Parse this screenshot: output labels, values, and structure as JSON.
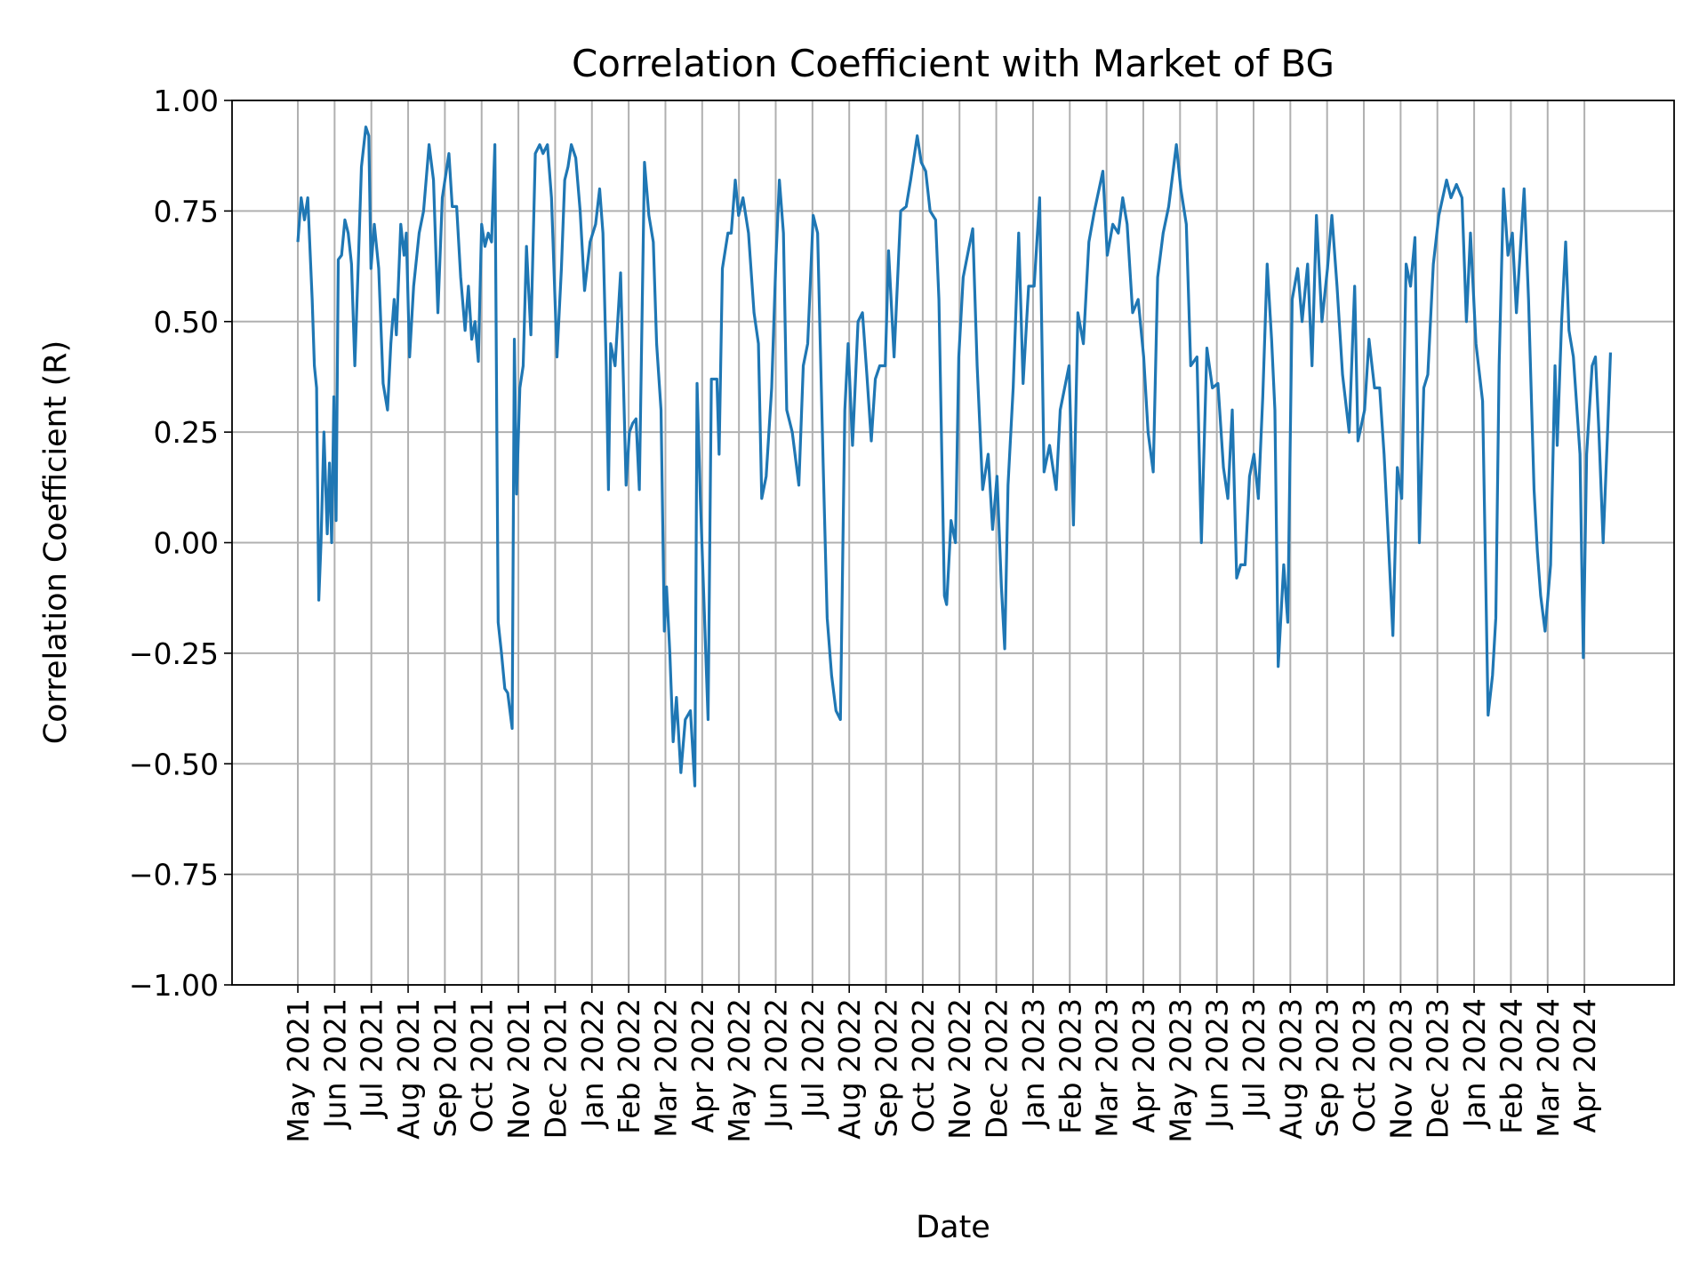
{
  "chart_data": {
    "type": "line",
    "title": "Correlation Coefficient with Market of BG",
    "xlabel": "Date",
    "ylabel": "Correlation Coefficient (R)",
    "color": "#1f77b4",
    "grid": true,
    "xlim": [
      -1.79,
      37.44
    ],
    "ylim": [
      -1,
      1
    ],
    "yticks": [
      {
        "value": -1,
        "label": "−1.00"
      },
      {
        "value": -0.75,
        "label": "−0.75"
      },
      {
        "value": -0.5,
        "label": "−0.50"
      },
      {
        "value": -0.25,
        "label": "−0.25"
      },
      {
        "value": 0,
        "label": "0.00"
      },
      {
        "value": 0.25,
        "label": "0.25"
      },
      {
        "value": 0.5,
        "label": "0.50"
      },
      {
        "value": 0.75,
        "label": "0.75"
      },
      {
        "value": 1,
        "label": "1.00"
      }
    ],
    "xticks": [
      {
        "value": 0,
        "label": "May 2021"
      },
      {
        "value": 1,
        "label": "Jun 2021"
      },
      {
        "value": 2,
        "label": "Jul 2021"
      },
      {
        "value": 3,
        "label": "Aug 2021"
      },
      {
        "value": 4,
        "label": "Sep 2021"
      },
      {
        "value": 5,
        "label": "Oct 2021"
      },
      {
        "value": 6,
        "label": "Nov 2021"
      },
      {
        "value": 7,
        "label": "Dec 2021"
      },
      {
        "value": 8,
        "label": "Jan 2022"
      },
      {
        "value": 9,
        "label": "Feb 2022"
      },
      {
        "value": 10,
        "label": "Mar 2022"
      },
      {
        "value": 11,
        "label": "Apr 2022"
      },
      {
        "value": 12,
        "label": "May 2022"
      },
      {
        "value": 13,
        "label": "Jun 2022"
      },
      {
        "value": 14,
        "label": "Jul 2022"
      },
      {
        "value": 15,
        "label": "Aug 2022"
      },
      {
        "value": 16,
        "label": "Sep 2022"
      },
      {
        "value": 17,
        "label": "Oct 2022"
      },
      {
        "value": 18,
        "label": "Nov 2022"
      },
      {
        "value": 19,
        "label": "Dec 2022"
      },
      {
        "value": 20,
        "label": "Jan 2023"
      },
      {
        "value": 21,
        "label": "Feb 2023"
      },
      {
        "value": 22,
        "label": "Mar 2023"
      },
      {
        "value": 23,
        "label": "Apr 2023"
      },
      {
        "value": 24,
        "label": "May 2023"
      },
      {
        "value": 25,
        "label": "Jun 2023"
      },
      {
        "value": 26,
        "label": "Jul 2023"
      },
      {
        "value": 27,
        "label": "Aug 2023"
      },
      {
        "value": 28,
        "label": "Sep 2023"
      },
      {
        "value": 29,
        "label": "Oct 2023"
      },
      {
        "value": 30,
        "label": "Nov 2023"
      },
      {
        "value": 31,
        "label": "Dec 2023"
      },
      {
        "value": 32,
        "label": "Jan 2024"
      },
      {
        "value": 33,
        "label": "Feb 2024"
      },
      {
        "value": 34,
        "label": "Mar 2024"
      },
      {
        "value": 35,
        "label": "Apr 2024"
      }
    ],
    "x": [
      0.0,
      0.09,
      0.18,
      0.27,
      0.39,
      0.45,
      0.51,
      0.57,
      0.63,
      0.71,
      0.8,
      0.86,
      0.92,
      0.98,
      1.04,
      1.1,
      1.19,
      1.28,
      1.37,
      1.46,
      1.55,
      1.64,
      1.73,
      1.85,
      1.93,
      1.99,
      2.08,
      2.2,
      2.32,
      2.44,
      2.53,
      2.62,
      2.68,
      2.8,
      2.89,
      2.95,
      3.04,
      3.15,
      3.3,
      3.42,
      3.57,
      3.69,
      3.81,
      3.93,
      4.11,
      4.2,
      4.32,
      4.43,
      4.55,
      4.64,
      4.73,
      4.82,
      4.91,
      5.0,
      5.09,
      5.18,
      5.27,
      5.36,
      5.45,
      5.54,
      5.63,
      5.71,
      5.83,
      5.89,
      5.95,
      6.04,
      6.13,
      6.22,
      6.34,
      6.46,
      6.58,
      6.67,
      6.79,
      6.9,
      7.05,
      7.17,
      7.26,
      7.35,
      7.44,
      7.56,
      7.68,
      7.8,
      7.95,
      8.1,
      8.21,
      8.3,
      8.39,
      8.45,
      8.51,
      8.63,
      8.78,
      8.93,
      9.02,
      9.11,
      9.2,
      9.29,
      9.43,
      9.55,
      9.67,
      9.76,
      9.88,
      9.97,
      10.03,
      10.12,
      10.21,
      10.3,
      10.42,
      10.54,
      10.68,
      10.8,
      10.86,
      10.95,
      11.16,
      11.25,
      11.4,
      11.46,
      11.55,
      11.7,
      11.79,
      11.9,
      11.99,
      12.11,
      12.26,
      12.41,
      12.53,
      12.62,
      12.74,
      12.89,
      13.01,
      13.1,
      13.21,
      13.3,
      13.45,
      13.63,
      13.75,
      13.87,
      14.02,
      14.14,
      14.29,
      14.4,
      14.52,
      14.64,
      14.76,
      14.88,
      14.97,
      15.09,
      15.24,
      15.36,
      15.48,
      15.6,
      15.71,
      15.83,
      15.98,
      16.07,
      16.22,
      16.4,
      16.55,
      16.67,
      16.85,
      16.96,
      17.08,
      17.2,
      17.35,
      17.44,
      17.59,
      17.65,
      17.77,
      17.89,
      17.98,
      18.1,
      18.24,
      18.36,
      18.48,
      18.63,
      18.78,
      18.9,
      19.02,
      19.14,
      19.23,
      19.32,
      19.46,
      19.61,
      19.73,
      19.88,
      20.03,
      20.18,
      20.3,
      20.45,
      20.63,
      20.74,
      20.86,
      20.98,
      21.1,
      21.22,
      21.37,
      21.52,
      21.67,
      21.9,
      22.02,
      22.17,
      22.32,
      22.44,
      22.56,
      22.71,
      22.86,
      23.01,
      23.13,
      23.27,
      23.39,
      23.54,
      23.69,
      23.9,
      24.02,
      24.17,
      24.29,
      24.46,
      24.58,
      24.73,
      24.88,
      25.03,
      25.18,
      25.3,
      25.42,
      25.54,
      25.65,
      25.77,
      25.89,
      26.01,
      26.13,
      26.25,
      26.37,
      26.49,
      26.58,
      26.67,
      26.82,
      26.93,
      27.05,
      27.2,
      27.32,
      27.47,
      27.59,
      27.71,
      27.86,
      28.01,
      28.13,
      28.27,
      28.42,
      28.6,
      28.75,
      28.84,
      29.02,
      29.14,
      29.29,
      29.43,
      29.55,
      29.67,
      29.79,
      29.91,
      30.03,
      30.15,
      30.27,
      30.39,
      30.51,
      30.63,
      30.74,
      30.89,
      31.04,
      31.25,
      31.37,
      31.52,
      31.67,
      31.79,
      31.9,
      32.05,
      32.23,
      32.38,
      32.5,
      32.59,
      32.68,
      32.8,
      32.92,
      33.04,
      33.15,
      33.36,
      33.48,
      33.63,
      33.72,
      33.81,
      33.93,
      34.08,
      34.2,
      34.26,
      34.38,
      34.49,
      34.58,
      34.7,
      34.88,
      34.97,
      35.06,
      35.21,
      35.3,
      35.39,
      35.51,
      35.63,
      35.71
    ],
    "values": [
      0.68,
      0.78,
      0.73,
      0.78,
      0.55,
      0.4,
      0.35,
      -0.13,
      0.0,
      0.25,
      0.02,
      0.18,
      0.0,
      0.33,
      0.05,
      0.64,
      0.65,
      0.73,
      0.7,
      0.63,
      0.4,
      0.62,
      0.85,
      0.94,
      0.92,
      0.62,
      0.72,
      0.62,
      0.36,
      0.3,
      0.45,
      0.55,
      0.47,
      0.72,
      0.65,
      0.7,
      0.42,
      0.58,
      0.7,
      0.75,
      0.9,
      0.82,
      0.52,
      0.78,
      0.88,
      0.76,
      0.76,
      0.6,
      0.48,
      0.58,
      0.46,
      0.5,
      0.41,
      0.72,
      0.67,
      0.7,
      0.68,
      0.9,
      -0.18,
      -0.25,
      -0.33,
      -0.34,
      -0.42,
      0.46,
      0.11,
      0.35,
      0.4,
      0.67,
      0.47,
      0.88,
      0.9,
      0.88,
      0.9,
      0.78,
      0.42,
      0.62,
      0.82,
      0.85,
      0.9,
      0.87,
      0.75,
      0.57,
      0.68,
      0.72,
      0.8,
      0.7,
      0.4,
      0.12,
      0.45,
      0.4,
      0.61,
      0.13,
      0.25,
      0.27,
      0.28,
      0.12,
      0.86,
      0.74,
      0.68,
      0.45,
      0.3,
      -0.2,
      -0.1,
      -0.25,
      -0.45,
      -0.35,
      -0.52,
      -0.4,
      -0.38,
      -0.55,
      0.36,
      0.1,
      -0.4,
      0.37,
      0.37,
      0.2,
      0.62,
      0.7,
      0.7,
      0.82,
      0.74,
      0.78,
      0.7,
      0.52,
      0.45,
      0.1,
      0.15,
      0.35,
      0.65,
      0.82,
      0.7,
      0.3,
      0.25,
      0.13,
      0.4,
      0.45,
      0.74,
      0.7,
      0.18,
      -0.17,
      -0.3,
      -0.38,
      -0.4,
      0.3,
      0.45,
      0.22,
      0.5,
      0.52,
      0.38,
      0.23,
      0.37,
      0.4,
      0.4,
      0.66,
      0.42,
      0.75,
      0.76,
      0.82,
      0.92,
      0.86,
      0.84,
      0.75,
      0.73,
      0.55,
      -0.12,
      -0.14,
      0.05,
      0.0,
      0.42,
      0.6,
      0.66,
      0.71,
      0.4,
      0.12,
      0.2,
      0.03,
      0.15,
      -0.1,
      -0.24,
      0.13,
      0.35,
      0.7,
      0.36,
      0.58,
      0.58,
      0.78,
      0.16,
      0.22,
      0.12,
      0.3,
      0.35,
      0.4,
      0.04,
      0.52,
      0.45,
      0.68,
      0.75,
      0.84,
      0.65,
      0.72,
      0.7,
      0.78,
      0.72,
      0.52,
      0.55,
      0.42,
      0.25,
      0.16,
      0.6,
      0.7,
      0.76,
      0.9,
      0.8,
      0.72,
      0.4,
      0.42,
      0.0,
      0.44,
      0.35,
      0.36,
      0.17,
      0.1,
      0.3,
      -0.08,
      -0.05,
      -0.05,
      0.15,
      0.2,
      0.1,
      0.33,
      0.63,
      0.46,
      0.3,
      -0.28,
      -0.05,
      -0.18,
      0.55,
      0.62,
      0.5,
      0.63,
      0.4,
      0.74,
      0.5,
      0.62,
      0.74,
      0.58,
      0.38,
      0.25,
      0.58,
      0.23,
      0.3,
      0.46,
      0.35,
      0.35,
      0.2,
      0.0,
      -0.21,
      0.17,
      0.1,
      0.63,
      0.58,
      0.69,
      0.0,
      0.35,
      0.38,
      0.63,
      0.74,
      0.82,
      0.78,
      0.81,
      0.78,
      0.5,
      0.7,
      0.45,
      0.32,
      -0.39,
      -0.3,
      -0.17,
      0.4,
      0.8,
      0.65,
      0.7,
      0.52,
      0.8,
      0.55,
      0.12,
      -0.02,
      -0.12,
      -0.2,
      -0.05,
      0.4,
      0.22,
      0.5,
      0.68,
      0.48,
      0.42,
      0.2,
      -0.26,
      0.2,
      0.4,
      0.42,
      0.26,
      0.0,
      0.25,
      0.43
    ]
  }
}
